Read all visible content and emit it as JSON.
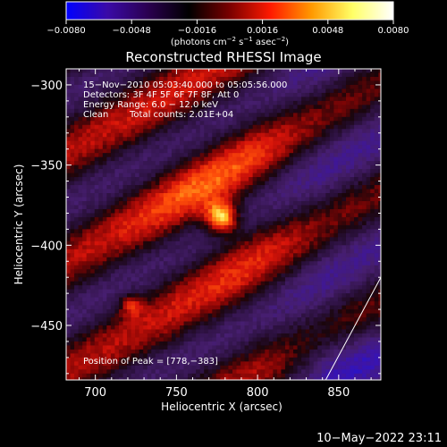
{
  "chart_data": {
    "type": "heatmap",
    "title": "Reconstructed RHESSI Image",
    "xlabel": "Heliocentric X (arcsec)",
    "ylabel": "Heliocentric Y (arcsec)",
    "xlim": [
      682,
      876
    ],
    "ylim": [
      -484,
      -290
    ],
    "x_ticks": [
      700,
      750,
      800,
      850
    ],
    "x_tick_labels": [
      "700",
      "750",
      "800",
      "850"
    ],
    "y_ticks": [
      -300,
      -350,
      -400,
      -450
    ],
    "y_tick_labels": [
      "−300",
      "−350",
      "−400",
      "−450"
    ],
    "colorbar": {
      "range": [
        -0.008,
        0.008
      ],
      "ticks": [
        -0.008,
        -0.0048,
        -0.0016,
        0.0016,
        0.0048,
        0.008
      ],
      "tick_labels": [
        "−0.0080",
        "−0.0048",
        "−0.0016",
        "0.0016",
        "0.0048",
        "0.0080"
      ],
      "unit_main": "(photons cm",
      "unit_sup1": "−2",
      "unit_mid": " s",
      "unit_sup2": "−1",
      "unit_mid2": " asec",
      "unit_sup3": "−2",
      "unit_end": ")",
      "colors": [
        "#0000ff",
        "#3a0aa8",
        "#2a0050",
        "#000000",
        "#7a0000",
        "#ff1a00",
        "#ff9900",
        "#ffff66",
        "#ffffff"
      ]
    },
    "annotations": [
      "15−Nov−2010 05:03:40.000 to 05:05:56.000",
      "Detectors: 3F 4F 5F 6F 7F 8F, Att 0",
      "Energy Range: 6.0 − 12.0 keV",
      "Clean",
      "Total counts: 2.01E+04"
    ],
    "peak_label": "Position of Peak = [778,−383]",
    "peak": {
      "x": 778,
      "y": -383,
      "value": 0.008
    },
    "limb_line": [
      [
        842,
        -484
      ],
      [
        876,
        -420
      ]
    ],
    "background": "#000000",
    "limb_color": "#ffffff"
  },
  "footer_timestamp": "10−May−2022 23:11"
}
